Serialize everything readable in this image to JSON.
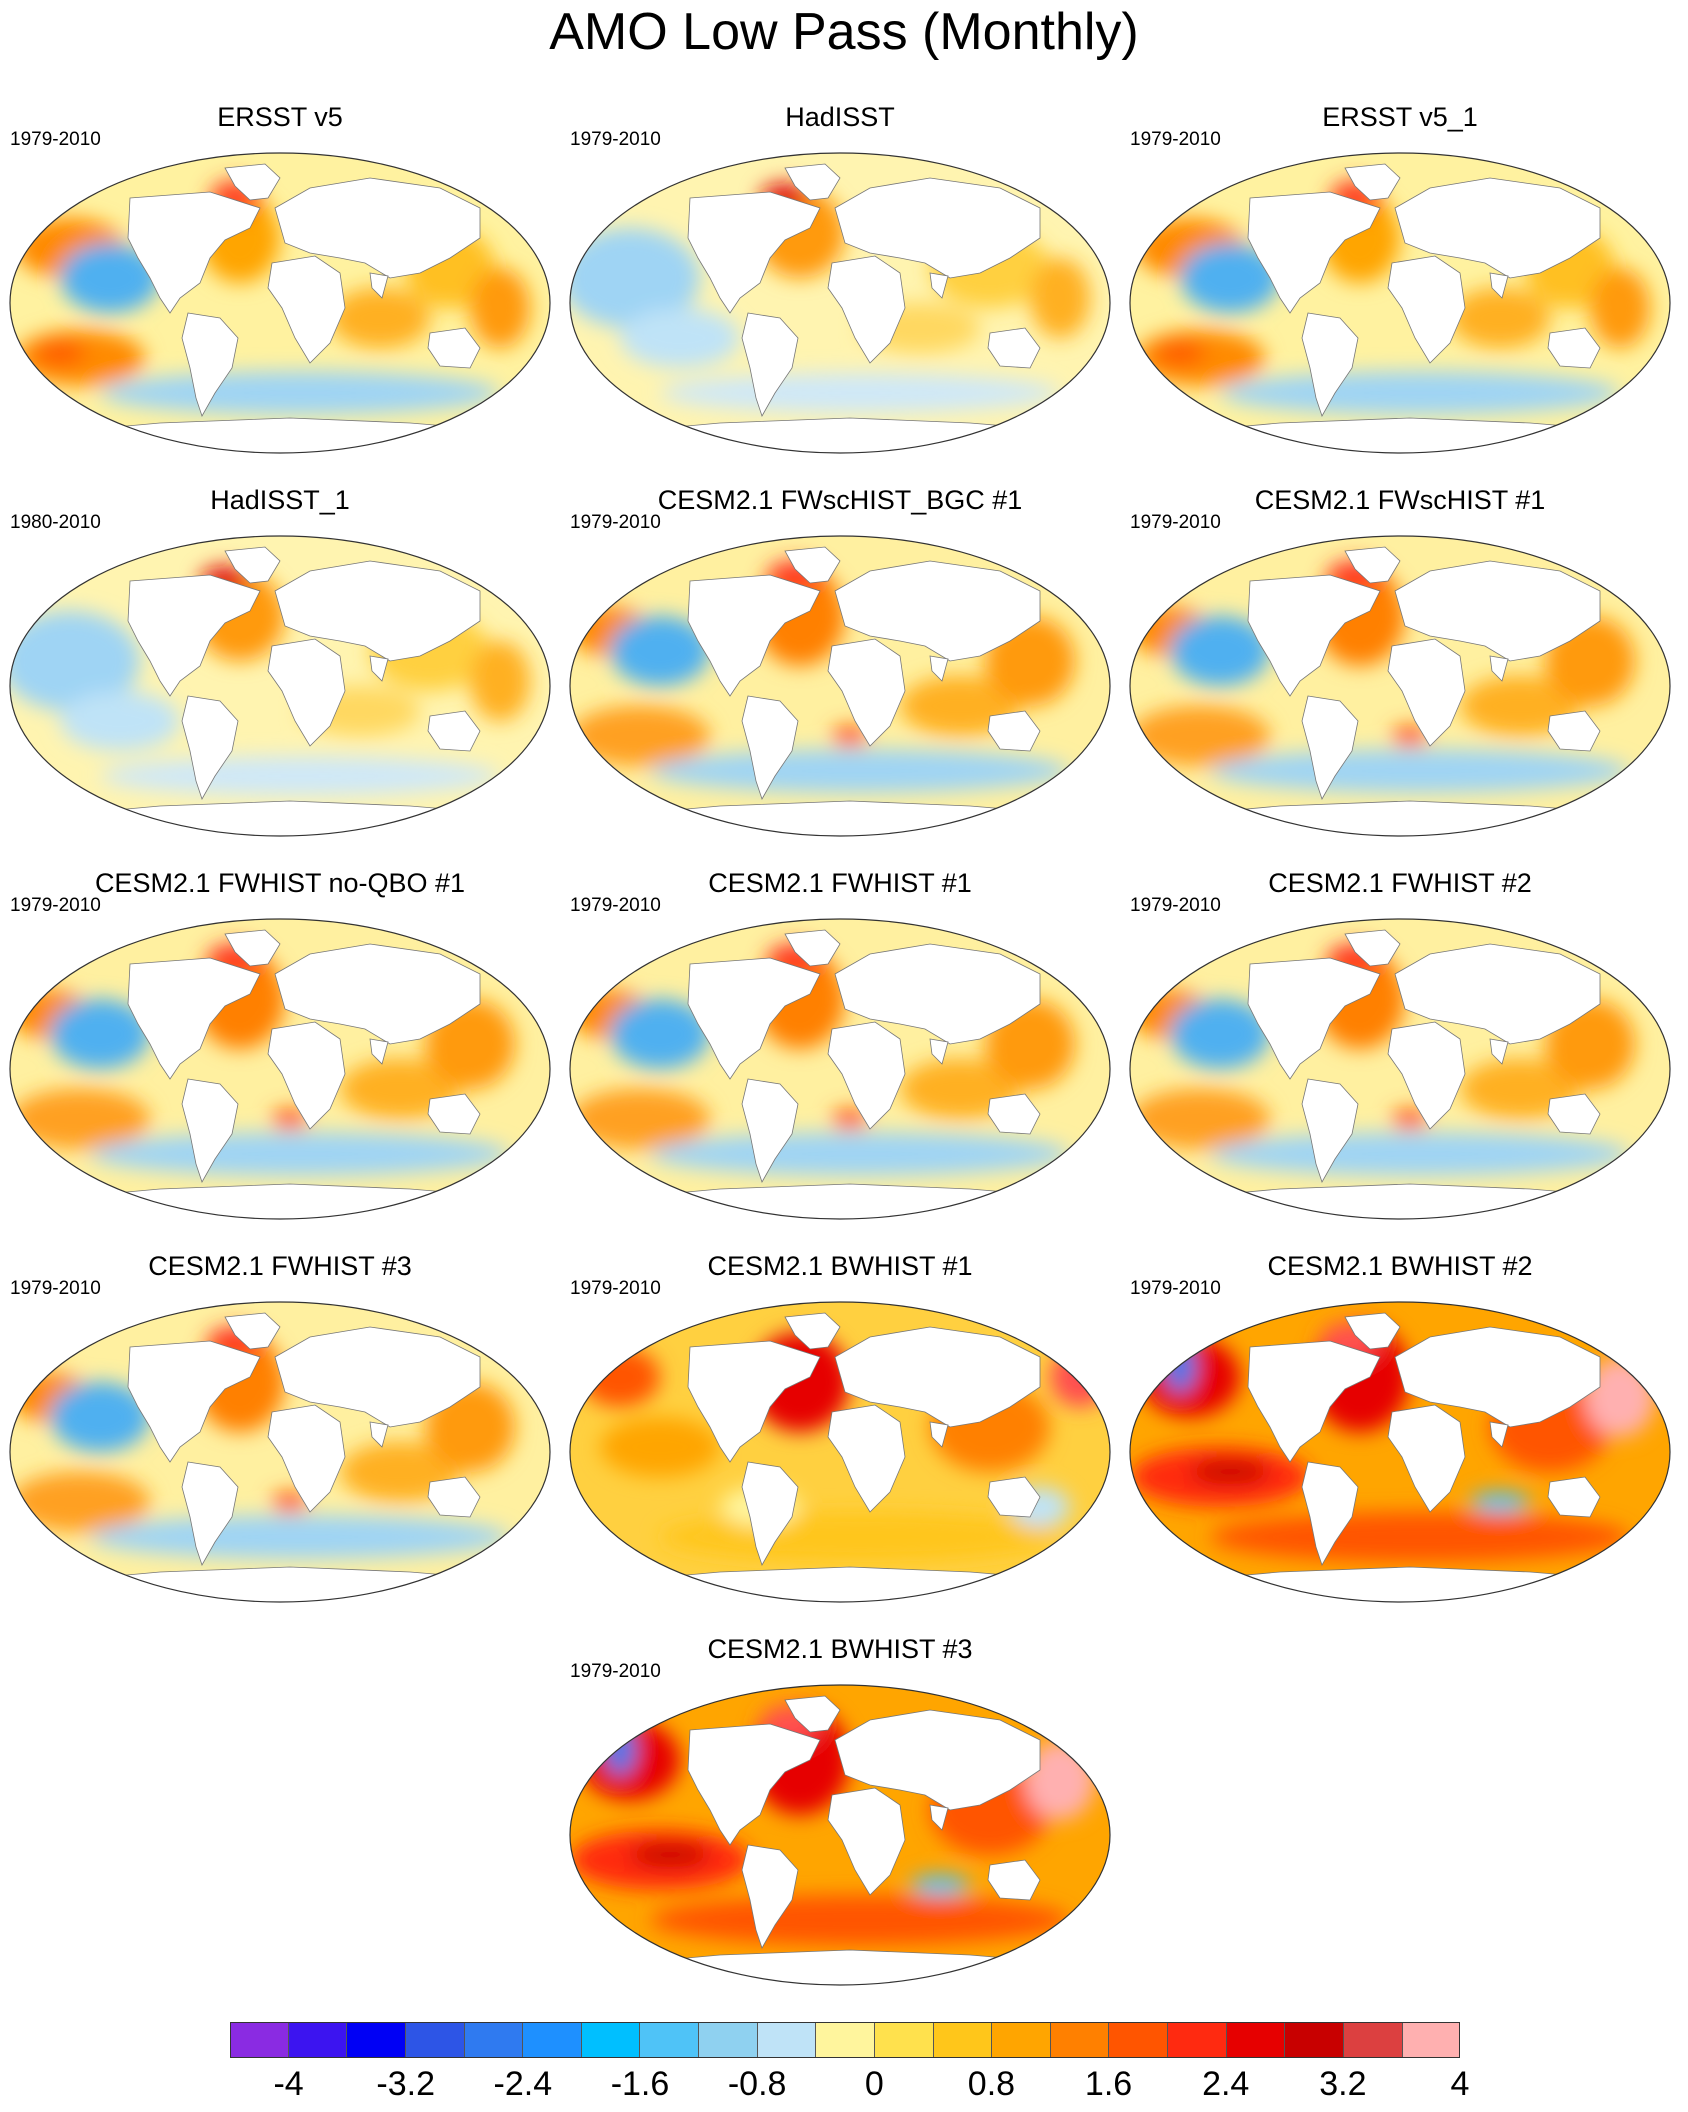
{
  "title": "AMO Low Pass (Monthly)",
  "panels": [
    {
      "title": "ERSST v5",
      "period": "1979-2010",
      "warm": 1,
      "scheme": "obs"
    },
    {
      "title": "HadISST",
      "period": "1979-2010",
      "warm": 0,
      "scheme": "obs2"
    },
    {
      "title": "ERSST v5_1",
      "period": "1979-2010",
      "warm": 1,
      "scheme": "obs"
    },
    {
      "title": "HadISST_1",
      "period": "1980-2010",
      "warm": 0,
      "scheme": "obs2"
    },
    {
      "title": "CESM2.1 FWscHIST_BGC #1",
      "period": "1979-2010",
      "warm": 1,
      "scheme": "model"
    },
    {
      "title": "CESM2.1 FWscHIST #1",
      "period": "1979-2010",
      "warm": 1,
      "scheme": "model"
    },
    {
      "title": "CESM2.1 FWHIST no-QBO #1",
      "period": "1979-2010",
      "warm": 1,
      "scheme": "model"
    },
    {
      "title": "CESM2.1 FWHIST #1",
      "period": "1979-2010",
      "warm": 1,
      "scheme": "model"
    },
    {
      "title": "CESM2.1 FWHIST #2",
      "period": "1979-2010",
      "warm": 1,
      "scheme": "model"
    },
    {
      "title": "CESM2.1 FWHIST #3",
      "period": "1979-2010",
      "warm": 1,
      "scheme": "model"
    },
    {
      "title": "CESM2.1 BWHIST #1",
      "period": "1979-2010",
      "warm": 2,
      "scheme": "warm"
    },
    {
      "title": "CESM2.1 BWHIST #2",
      "period": "1979-2010",
      "warm": 3,
      "scheme": "hot"
    },
    {
      "title": "CESM2.1 BWHIST #3",
      "period": "1979-2010",
      "warm": 3,
      "scheme": "hot"
    }
  ],
  "colorbar": {
    "colors": [
      "#8a2be2",
      "#3c14f0",
      "#0000f5",
      "#2d55e6",
      "#2f7af0",
      "#1e90ff",
      "#00bfff",
      "#4fc3f7",
      "#8fd1f0",
      "#bfe3f7",
      "#fff59d",
      "#ffe14d",
      "#ffc61a",
      "#ffa500",
      "#ff8000",
      "#ff5500",
      "#ff2a10",
      "#e60000",
      "#c80000",
      "#dc4040",
      "#ffb0b0"
    ],
    "labels": [
      "-4",
      "-3.2",
      "-2.4",
      "-1.6",
      "-0.8",
      "0",
      "0.8",
      "1.6",
      "2.4",
      "3.2",
      "4"
    ]
  }
}
